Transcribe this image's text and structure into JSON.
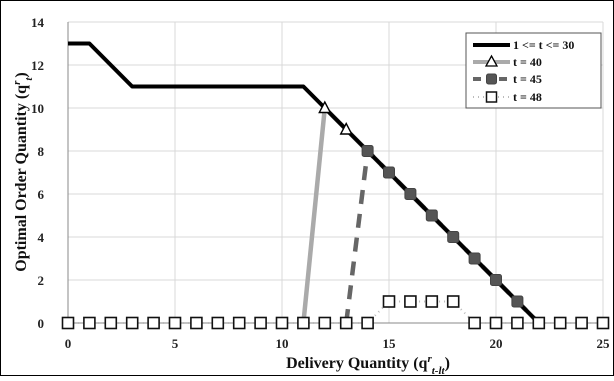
{
  "chart_data": {
    "type": "line",
    "xlabel": "Delivery Quantity (q",
    "xlabel_sup": "r",
    "xlabel_sub": "t-lt",
    "xlabel_close": ")",
    "ylabel": "Optimal Order Quantity (q",
    "ylabel_sup": "r",
    "ylabel_sub": "t",
    "ylabel_close": ")",
    "xlim": [
      0,
      25
    ],
    "ylim": [
      0,
      14
    ],
    "x_ticks": [
      0,
      5,
      10,
      15,
      20,
      25
    ],
    "y_ticks": [
      0,
      2,
      4,
      6,
      8,
      10,
      12,
      14
    ],
    "x_tick_labels": [
      "0",
      "5",
      "10",
      "15",
      "20",
      "25"
    ],
    "y_tick_labels": [
      "0",
      "2",
      "4",
      "6",
      "8",
      "10",
      "12",
      "14"
    ],
    "grid": true,
    "legend_position": "top-right",
    "series": [
      {
        "name": "1 <= t <= 30",
        "color": "#000000",
        "style": "solid",
        "marker": "none",
        "points": [
          [
            0,
            13
          ],
          [
            1,
            13
          ],
          [
            3,
            11
          ],
          [
            11,
            11
          ],
          [
            12,
            10
          ],
          [
            13,
            9
          ],
          [
            14,
            8
          ],
          [
            15,
            7
          ],
          [
            16,
            6
          ],
          [
            17,
            5
          ],
          [
            18,
            4
          ],
          [
            19,
            3
          ],
          [
            20,
            2
          ],
          [
            21,
            1
          ],
          [
            22,
            0
          ]
        ]
      },
      {
        "name": "t = 40",
        "color": "#aaaaaa",
        "style": "solid",
        "marker": "open-triangle",
        "points": [
          [
            11,
            0
          ],
          [
            12,
            10
          ],
          [
            13,
            9
          ],
          [
            14,
            8
          ],
          [
            15,
            7
          ],
          [
            16,
            6
          ],
          [
            17,
            5
          ],
          [
            18,
            4
          ],
          [
            19,
            3
          ],
          [
            20,
            2
          ],
          [
            21,
            1
          ],
          [
            22,
            0
          ]
        ],
        "marker_points": [
          [
            12,
            10
          ],
          [
            13,
            9
          ]
        ]
      },
      {
        "name": "t = 45",
        "color": "#666666",
        "style": "dashed",
        "marker": "filled-square",
        "points": [
          [
            13,
            0
          ],
          [
            14,
            8
          ],
          [
            15,
            7
          ],
          [
            16,
            6
          ],
          [
            17,
            5
          ],
          [
            18,
            4
          ],
          [
            19,
            3
          ],
          [
            20,
            2
          ],
          [
            21,
            1
          ],
          [
            22,
            0
          ]
        ],
        "marker_points": [
          [
            14,
            8
          ],
          [
            15,
            7
          ],
          [
            16,
            6
          ],
          [
            17,
            5
          ],
          [
            18,
            4
          ],
          [
            19,
            3
          ],
          [
            20,
            2
          ],
          [
            21,
            1
          ]
        ]
      },
      {
        "name": "t = 48",
        "color": "#bbbbbb",
        "style": "dotted",
        "marker": "open-square",
        "points": [
          [
            0,
            0
          ],
          [
            1,
            0
          ],
          [
            2,
            0
          ],
          [
            3,
            0
          ],
          [
            4,
            0
          ],
          [
            5,
            0
          ],
          [
            6,
            0
          ],
          [
            7,
            0
          ],
          [
            8,
            0
          ],
          [
            9,
            0
          ],
          [
            10,
            0
          ],
          [
            11,
            0
          ],
          [
            12,
            0
          ],
          [
            13,
            0
          ],
          [
            14,
            0
          ],
          [
            15,
            1
          ],
          [
            16,
            1
          ],
          [
            17,
            1
          ],
          [
            18,
            1
          ],
          [
            19,
            0
          ],
          [
            20,
            0
          ],
          [
            21,
            0
          ],
          [
            22,
            0
          ],
          [
            23,
            0
          ],
          [
            24,
            0
          ],
          [
            25,
            0
          ]
        ],
        "marker_points": [
          [
            0,
            0
          ],
          [
            1,
            0
          ],
          [
            2,
            0
          ],
          [
            3,
            0
          ],
          [
            4,
            0
          ],
          [
            5,
            0
          ],
          [
            6,
            0
          ],
          [
            7,
            0
          ],
          [
            8,
            0
          ],
          [
            9,
            0
          ],
          [
            10,
            0
          ],
          [
            11,
            0
          ],
          [
            12,
            0
          ],
          [
            13,
            0
          ],
          [
            14,
            0
          ],
          [
            15,
            1
          ],
          [
            16,
            1
          ],
          [
            17,
            1
          ],
          [
            18,
            1
          ],
          [
            19,
            0
          ],
          [
            20,
            0
          ],
          [
            21,
            0
          ],
          [
            22,
            0
          ],
          [
            23,
            0
          ],
          [
            24,
            0
          ],
          [
            25,
            0
          ]
        ]
      }
    ]
  }
}
